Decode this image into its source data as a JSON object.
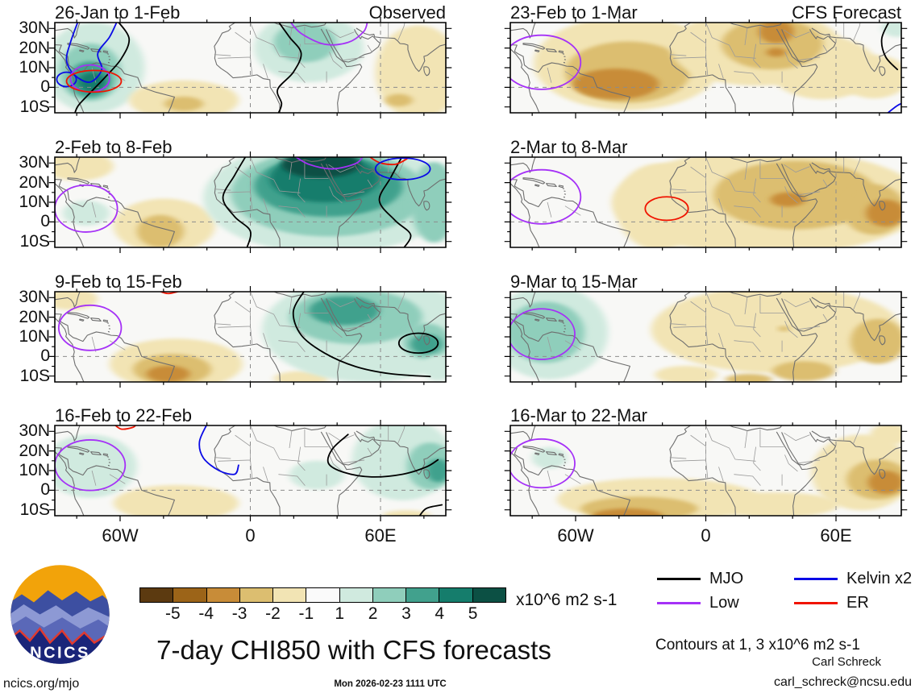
{
  "chart_data": {
    "type": "heatmap",
    "title": "7-day CHI850 with CFS forecasts",
    "column_tags": [
      "Observed",
      "CFS Forecast"
    ],
    "y_ticks": [
      "30N",
      "20N",
      "10N",
      "0",
      "10S"
    ],
    "x_ticks": [
      "60W",
      "0",
      "60E"
    ],
    "colorbar": {
      "values": [
        "-5",
        "-4",
        "-3",
        "-2",
        "-1",
        "1",
        "2",
        "3",
        "4",
        "5"
      ],
      "colors": [
        "#5C3A10",
        "#9C6418",
        "#C88C38",
        "#DCBE70",
        "#F2E4B4",
        "#FAFAFA",
        "#D0EADF",
        "#8FCEBB",
        "#41A18D",
        "#157D6C",
        "#0C5044"
      ],
      "units": "x10^6 m2 s-1"
    },
    "legend": [
      {
        "label": "MJO",
        "color": "#000000"
      },
      {
        "label": "Kelvin x2",
        "color": "#0A0AE6"
      },
      {
        "label": "Low",
        "color": "#A531F7"
      },
      {
        "label": "ER",
        "color": "#F01400"
      }
    ],
    "contour_note": "Contours at 1, 3 x10^6 m2 s-1",
    "palette": {
      "m5": "#5C3A10",
      "m4": "#9C6418",
      "m3": "#C88C38",
      "m2": "#DCBE70",
      "m1": "#F2E4B4",
      "z": "#FAFAFA",
      "p1": "#D0EADF",
      "p2": "#8FCEBB",
      "p3": "#41A18D",
      "p4": "#157D6C",
      "p5": "#0C5044"
    },
    "contour_colors": {
      "black": "#000000",
      "purple": "#A531F7",
      "blue": "#0A0AE6",
      "red": "#F01400"
    },
    "panels": [
      {
        "title": "26-Jan to 1-Feb",
        "tag": "Observed",
        "blobs": [
          [
            "p1",
            10,
            50,
            13,
            50
          ],
          [
            "p2",
            9,
            55,
            8,
            32
          ],
          [
            "p3",
            9,
            63,
            5.5,
            20
          ],
          [
            "p4",
            9.5,
            66,
            3.5,
            11
          ],
          [
            "p1",
            65,
            28,
            14,
            38
          ],
          [
            "p2",
            64,
            22,
            8,
            22
          ],
          [
            "m1",
            33,
            86,
            14,
            22
          ],
          [
            "m2",
            33,
            90,
            5,
            8
          ],
          [
            "m1",
            93,
            55,
            11,
            52
          ],
          [
            "m2",
            88,
            86,
            3.5,
            7
          ]
        ],
        "contours": [
          [
            "line",
            "blue",
            [
              [
                6,
                -2
              ],
              [
                4,
                22
              ],
              [
                3,
                42
              ],
              [
                5,
                58
              ],
              [
                9,
                66
              ],
              [
                12,
                52
              ],
              [
                11,
                34
              ],
              [
                14,
                16
              ],
              [
                16,
                -2
              ]
            ]
          ],
          [
            "ring",
            "blue",
            3,
            63,
            2.5,
            8
          ],
          [
            "line",
            "black",
            [
              [
                16,
                -2
              ],
              [
                19,
                18
              ],
              [
                17,
                40
              ],
              [
                13,
                60
              ],
              [
                9,
                78
              ],
              [
                6,
                92
              ],
              [
                5,
                102
              ]
            ]
          ],
          [
            "line",
            "black",
            [
              [
                57,
                -2
              ],
              [
                60,
                16
              ],
              [
                63,
                34
              ],
              [
                61,
                55
              ],
              [
                57,
                74
              ],
              [
                58,
                90
              ],
              [
                57,
                102
              ]
            ]
          ],
          [
            "ring",
            "purple",
            9,
            62,
            5,
            15
          ],
          [
            "ring",
            "red",
            10,
            65,
            7,
            12
          ],
          [
            "line",
            "purple",
            [
              [
                60,
                -2
              ],
              [
                63,
                12
              ],
              [
                69,
                24
              ],
              [
                75,
                22
              ],
              [
                79,
                10
              ],
              [
                80,
                -2
              ]
            ]
          ]
        ]
      },
      {
        "title": "2-Feb to 8-Feb",
        "blobs": [
          [
            "m1",
            6,
            10,
            9,
            16
          ],
          [
            "m1",
            28,
            76,
            13,
            30
          ],
          [
            "m2",
            27,
            82,
            6,
            18
          ],
          [
            "p1",
            70,
            45,
            32,
            62
          ],
          [
            "p2",
            70,
            40,
            25,
            48
          ],
          [
            "p3",
            70,
            32,
            19,
            34
          ],
          [
            "p4",
            69,
            24,
            14,
            26
          ],
          [
            "p5",
            68,
            8,
            10,
            15
          ],
          [
            "p1",
            8,
            62,
            6,
            14
          ],
          [
            "p2",
            97,
            50,
            6,
            45
          ]
        ],
        "contours": [
          [
            "ring",
            "purple",
            8,
            57,
            8,
            26
          ],
          [
            "line",
            "black",
            [
              [
                49,
                -2
              ],
              [
                46,
                20
              ],
              [
                43,
                45
              ],
              [
                46,
                66
              ],
              [
                50,
                82
              ],
              [
                49,
                102
              ]
            ]
          ],
          [
            "line",
            "black",
            [
              [
                89,
                -2
              ],
              [
                86,
                22
              ],
              [
                83,
                48
              ],
              [
                87,
                70
              ],
              [
                91,
                86
              ],
              [
                89,
                102
              ]
            ]
          ],
          [
            "line",
            "purple",
            [
              [
                61,
                -2
              ],
              [
                65,
                8
              ],
              [
                71,
                13
              ],
              [
                77,
                7
              ],
              [
                79,
                -2
              ]
            ]
          ],
          [
            "line",
            "red",
            [
              [
                80,
                -2
              ],
              [
                83,
                6
              ],
              [
                87,
                8
              ],
              [
                90,
                2
              ],
              [
                91,
                -2
              ]
            ]
          ],
          [
            "ring",
            "blue",
            89,
            13,
            7,
            12
          ]
        ]
      },
      {
        "title": "9-Feb to 15-Feb",
        "blobs": [
          [
            "m1",
            4,
            8,
            7,
            12
          ],
          [
            "m1",
            31,
            80,
            17,
            28
          ],
          [
            "m2",
            30,
            86,
            10,
            17
          ],
          [
            "m3",
            29,
            91,
            5.5,
            9
          ],
          [
            "m1",
            63,
            96,
            7,
            8
          ],
          [
            "p1",
            80,
            42,
            27,
            58
          ],
          [
            "p2",
            77,
            28,
            17,
            30
          ],
          [
            "p3",
            74,
            21,
            9,
            16
          ],
          [
            "p2",
            95,
            55,
            6,
            20
          ],
          [
            "p3",
            95,
            58,
            4,
            11
          ],
          [
            "p1",
            98,
            85,
            4,
            14
          ]
        ],
        "contours": [
          [
            "ring",
            "purple",
            9,
            40,
            8,
            25
          ],
          [
            "line",
            "red",
            [
              [
                26,
                -2
              ],
              [
                29,
                2
              ],
              [
                33,
                -2
              ]
            ]
          ],
          [
            "line",
            "black",
            [
              [
                64,
                -2
              ],
              [
                61,
                22
              ],
              [
                63,
                48
              ],
              [
                69,
                68
              ],
              [
                77,
                83
              ],
              [
                86,
                91
              ],
              [
                96,
                94
              ]
            ]
          ],
          [
            "ring",
            "black",
            93,
            57,
            5,
            11
          ]
        ]
      },
      {
        "title": "16-Feb to 22-Feb",
        "blobs": [
          [
            "p1",
            9,
            45,
            12,
            35
          ],
          [
            "m1",
            31,
            86,
            16,
            20
          ],
          [
            "p1",
            67,
            55,
            7,
            16
          ],
          [
            "p1",
            89,
            38,
            13,
            45
          ],
          [
            "p2",
            96,
            45,
            6,
            26
          ],
          [
            "p3",
            98,
            50,
            3,
            13
          ],
          [
            "m1",
            90,
            99,
            6,
            5
          ]
        ],
        "contours": [
          [
            "ring",
            "purple",
            9,
            44,
            9,
            28
          ],
          [
            "line",
            "red",
            [
              [
                15,
                -2
              ],
              [
                17,
                4
              ],
              [
                20,
                2
              ],
              [
                21,
                -2
              ]
            ]
          ],
          [
            "line",
            "blue",
            [
              [
                39,
                -2
              ],
              [
                37,
                18
              ],
              [
                38,
                36
              ],
              [
                42,
                50
              ],
              [
                46,
                54
              ],
              [
                47,
                44
              ]
            ]
          ],
          [
            "line",
            "black",
            [
              [
                75,
                10
              ],
              [
                71,
                26
              ],
              [
                70,
                42
              ],
              [
                74,
                52
              ],
              [
                81,
                57
              ],
              [
                89,
                54
              ],
              [
                95,
                46
              ],
              [
                98,
                38
              ]
            ]
          ],
          [
            "line",
            "black",
            [
              [
                93,
                102
              ],
              [
                95,
                92
              ],
              [
                99,
                88
              ]
            ]
          ]
        ]
      },
      {
        "title": "23-Feb to 1-Mar",
        "tag": "CFS Forecast",
        "blobs": [
          [
            "m1",
            30,
            45,
            24,
            52
          ],
          [
            "m2",
            30,
            55,
            16,
            34
          ],
          [
            "m3",
            27,
            68,
            11,
            17
          ],
          [
            "m1",
            63,
            28,
            22,
            42
          ],
          [
            "m1",
            80,
            50,
            14,
            35
          ],
          [
            "m2",
            67,
            24,
            13,
            28
          ],
          [
            "m3",
            68,
            10,
            4.5,
            13
          ],
          [
            "m3",
            68,
            33,
            2.5,
            5
          ],
          [
            "m1",
            93,
            60,
            9,
            24
          ],
          [
            "p1",
            99,
            6,
            4,
            10
          ]
        ],
        "contours": [
          [
            "ring",
            "purple",
            8,
            44,
            10,
            30
          ],
          [
            "line",
            "black",
            [
              [
                97,
                -2
              ],
              [
                95,
                18
              ],
              [
                96,
                38
              ],
              [
                99,
                52
              ]
            ]
          ],
          [
            "line",
            "blue",
            [
              [
                96,
                102
              ],
              [
                99,
                92
              ],
              [
                101,
                88
              ]
            ]
          ]
        ]
      },
      {
        "title": "2-Mar to 8-Mar",
        "blobs": [
          [
            "m1",
            66,
            50,
            40,
            58
          ],
          [
            "m1",
            38,
            55,
            11,
            48
          ],
          [
            "m2",
            73,
            42,
            21,
            38
          ],
          [
            "m2",
            93,
            58,
            8,
            28
          ],
          [
            "m3",
            71,
            47,
            4.5,
            8
          ],
          [
            "m3",
            96,
            62,
            5,
            15
          ]
        ],
        "contours": [
          [
            "ring",
            "purple",
            8,
            44,
            10,
            30
          ],
          [
            "ring",
            "red",
            40,
            57,
            5.5,
            13
          ]
        ]
      },
      {
        "title": "9-Mar to 15-Mar",
        "blobs": [
          [
            "p1",
            10,
            45,
            15,
            52
          ],
          [
            "p2",
            9,
            45,
            10,
            34
          ],
          [
            "m1",
            68,
            42,
            32,
            48
          ],
          [
            "m2",
            94,
            55,
            7,
            25
          ],
          [
            "m2",
            75,
            88,
            8,
            11
          ],
          [
            "m2",
            61,
            97,
            6,
            6
          ],
          [
            "m2",
            70,
            41,
            1.5,
            3
          ],
          [
            "m1",
            45,
            92,
            8,
            10
          ]
        ],
        "contours": [
          [
            "ring",
            "purple",
            8,
            47,
            8.5,
            28
          ]
        ]
      },
      {
        "title": "16-Mar to 22-Mar",
        "blobs": [
          [
            "p1",
            10,
            36,
            4.5,
            12
          ],
          [
            "m1",
            38,
            82,
            26,
            24
          ],
          [
            "m2",
            33,
            92,
            15,
            13
          ],
          [
            "m3",
            30,
            100,
            9,
            8
          ],
          [
            "m1",
            90,
            52,
            13,
            42
          ],
          [
            "m2",
            94,
            60,
            8,
            22
          ],
          [
            "m3",
            96,
            63,
            4.5,
            13
          ],
          [
            "m1",
            68,
            88,
            16,
            14
          ],
          [
            "m1",
            97,
            10,
            5,
            12
          ]
        ],
        "contours": [
          [
            "ring",
            "purple",
            8,
            42,
            8.5,
            27
          ]
        ]
      }
    ]
  },
  "logo": {
    "text": "NCICS"
  },
  "footer": {
    "site": "ncics.org/mjo",
    "timestamp": "Mon 2026-02-23 1111 UTC",
    "author": "Carl Schreck",
    "email": "carl_schreck@ncsu.edu"
  }
}
